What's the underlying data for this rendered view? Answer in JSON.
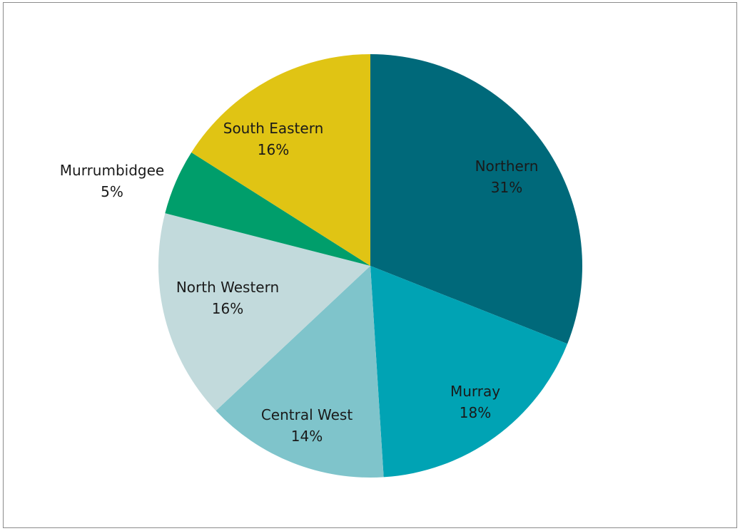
{
  "chart_data": {
    "type": "pie",
    "title": "",
    "slices": [
      {
        "label": "Northern",
        "value": 31,
        "value_label": "31%",
        "color": "#00697a"
      },
      {
        "label": "Murray",
        "value": 18,
        "value_label": "18%",
        "color": "#00a3b4"
      },
      {
        "label": "Central West",
        "value": 14,
        "value_label": "14%",
        "color": "#7fc4cb"
      },
      {
        "label": "North Western",
        "value": 16,
        "value_label": "16%",
        "color": "#c2dadc"
      },
      {
        "label": "Murrumbidgee",
        "value": 5,
        "value_label": "5%",
        "color": "#009e6b"
      },
      {
        "label": "South Eastern",
        "value": 16,
        "value_label": "16%",
        "color": "#e0c414"
      }
    ],
    "start_angle": "12 o'clock",
    "direction": "clockwise",
    "legend": "none",
    "data_labels": "category name and percentage"
  }
}
